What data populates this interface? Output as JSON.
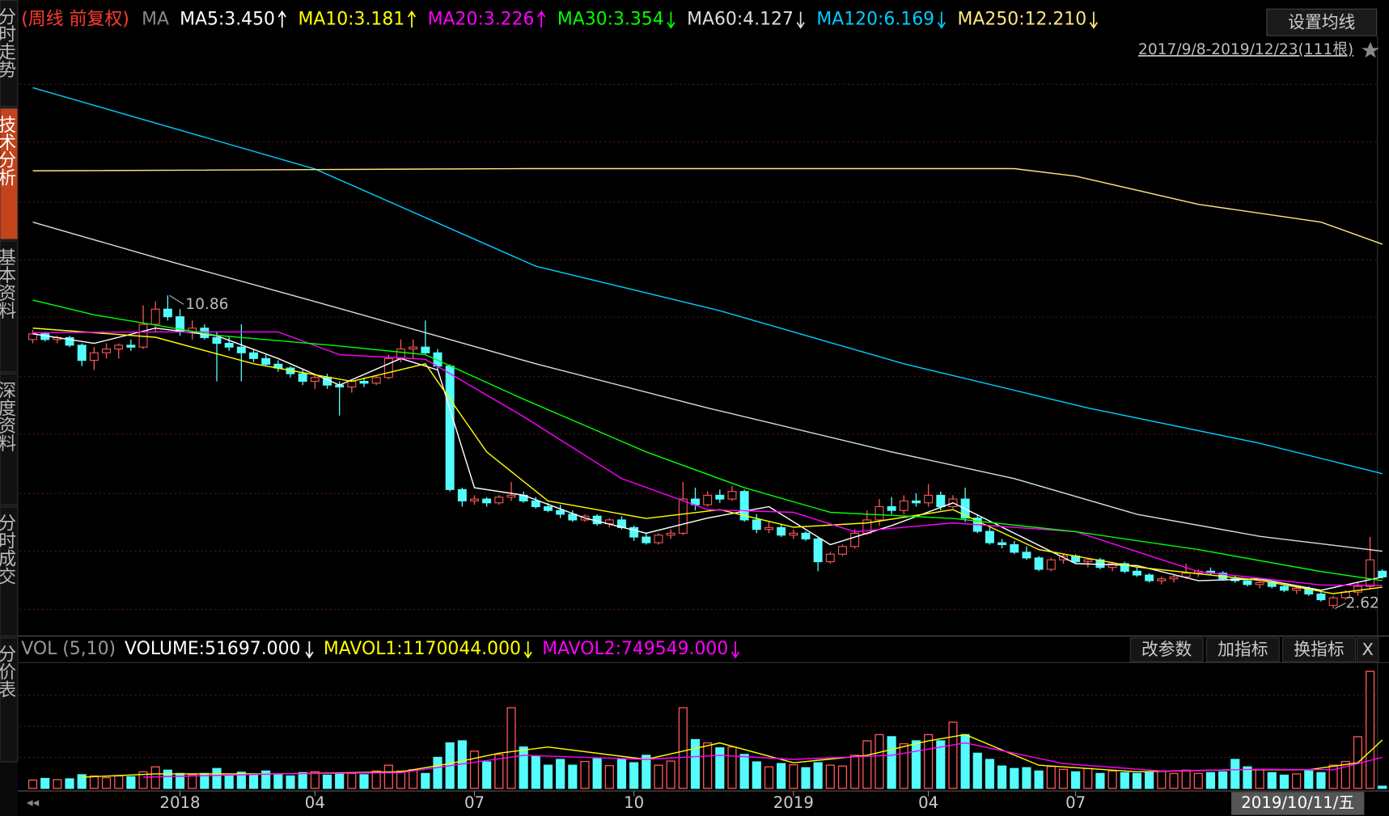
{
  "sidebar": {
    "tabs": [
      "分时走势",
      "技术分析",
      "基本资料",
      "深度资料",
      "分时成交",
      "分价表"
    ],
    "active": 1
  },
  "toolbar": {
    "settings_button": "设置均线",
    "range": "2017/9/8-2019/12/23(111根)"
  },
  "indicator_buttons": [
    "改参数",
    "加指标",
    "换指标",
    "X"
  ],
  "chart_data": [
    {
      "type": "candlestick",
      "title": "(周线 前复权)",
      "ma_label": "MA",
      "up_color": "#ff5757",
      "down_color": "#54fcfc",
      "ylim": [
        2.5,
        18.4
      ],
      "high_label": "10.86",
      "low_label": "2.62",
      "categories": [
        null,
        null,
        null,
        null,
        null,
        null,
        null,
        null,
        null,
        null,
        null,
        null,
        "2018",
        null,
        null,
        null,
        null,
        null,
        null,
        null,
        null,
        null,
        null,
        "04",
        null,
        null,
        null,
        null,
        null,
        null,
        null,
        null,
        null,
        null,
        null,
        null,
        "07",
        null,
        null,
        null,
        null,
        null,
        null,
        null,
        null,
        null,
        null,
        null,
        null,
        "10",
        null,
        null,
        null,
        null,
        null,
        null,
        null,
        null,
        null,
        null,
        null,
        null,
        "2019",
        null,
        null,
        null,
        null,
        null,
        null,
        null,
        null,
        null,
        null,
        "04",
        null,
        null,
        null,
        null,
        null,
        null,
        null,
        null,
        null,
        null,
        null,
        "07",
        null,
        null,
        null,
        null,
        null,
        null,
        null,
        null,
        null,
        null,
        null,
        null,
        null,
        null,
        null,
        null,
        null,
        null,
        null,
        null,
        null,
        null,
        null,
        null,
        null
      ],
      "cursor_label": "2019/10/11/五",
      "ohlc": [
        [
          9.7,
          9.95,
          9.6,
          9.85
        ],
        [
          9.85,
          9.9,
          9.65,
          9.7
        ],
        [
          9.7,
          9.8,
          9.6,
          9.75
        ],
        [
          9.75,
          9.8,
          9.5,
          9.55
        ],
        [
          9.55,
          9.6,
          9.0,
          9.15
        ],
        [
          9.15,
          9.5,
          8.9,
          9.35
        ],
        [
          9.35,
          9.6,
          9.2,
          9.45
        ],
        [
          9.45,
          9.6,
          9.2,
          9.55
        ],
        [
          9.55,
          9.7,
          9.4,
          9.5
        ],
        [
          9.5,
          10.6,
          9.45,
          10.1
        ],
        [
          10.1,
          10.7,
          9.9,
          10.5
        ],
        [
          10.5,
          10.86,
          10.2,
          10.3
        ],
        [
          10.3,
          10.5,
          9.8,
          9.9
        ],
        [
          9.9,
          10.2,
          9.7,
          10.0
        ],
        [
          10.0,
          10.1,
          9.7,
          9.75
        ],
        [
          9.75,
          9.9,
          8.6,
          9.6
        ],
        [
          9.6,
          9.8,
          9.4,
          9.5
        ],
        [
          9.5,
          10.1,
          8.6,
          9.35
        ],
        [
          9.35,
          9.45,
          9.1,
          9.2
        ],
        [
          9.2,
          9.3,
          9.0,
          9.05
        ],
        [
          9.05,
          9.15,
          8.85,
          8.95
        ],
        [
          8.95,
          9.0,
          8.7,
          8.8
        ],
        [
          8.8,
          8.9,
          8.5,
          8.6
        ],
        [
          8.6,
          8.8,
          8.4,
          8.7
        ],
        [
          8.7,
          8.8,
          8.4,
          8.5
        ],
        [
          8.5,
          8.6,
          7.7,
          8.45
        ],
        [
          8.45,
          8.65,
          8.3,
          8.6
        ],
        [
          8.6,
          8.7,
          8.45,
          8.55
        ],
        [
          8.55,
          8.75,
          8.5,
          8.7
        ],
        [
          8.7,
          9.3,
          8.65,
          9.2
        ],
        [
          9.2,
          9.7,
          9.1,
          9.45
        ],
        [
          9.45,
          9.7,
          9.2,
          9.5
        ],
        [
          9.5,
          10.2,
          9.3,
          9.35
        ],
        [
          9.35,
          9.45,
          8.9,
          9.0
        ],
        [
          9.0,
          9.05,
          5.7,
          5.75
        ],
        [
          5.75,
          5.8,
          5.3,
          5.45
        ],
        [
          5.45,
          5.6,
          5.35,
          5.5
        ],
        [
          5.5,
          5.55,
          5.3,
          5.4
        ],
        [
          5.4,
          5.6,
          5.35,
          5.55
        ],
        [
          5.55,
          5.95,
          5.45,
          5.6
        ],
        [
          5.6,
          5.7,
          5.4,
          5.45
        ],
        [
          5.45,
          5.55,
          5.25,
          5.3
        ],
        [
          5.3,
          5.4,
          5.15,
          5.2
        ],
        [
          5.2,
          5.35,
          5.0,
          5.1
        ],
        [
          5.1,
          5.2,
          4.9,
          4.95
        ],
        [
          4.95,
          5.1,
          4.9,
          5.05
        ],
        [
          5.05,
          5.1,
          4.8,
          4.85
        ],
        [
          4.85,
          5.0,
          4.75,
          4.95
        ],
        [
          4.95,
          5.05,
          4.7,
          4.75
        ],
        [
          4.75,
          4.8,
          4.4,
          4.5
        ],
        [
          4.5,
          4.6,
          4.3,
          4.35
        ],
        [
          4.35,
          4.6,
          4.3,
          4.55
        ],
        [
          4.55,
          4.7,
          4.45,
          4.6
        ],
        [
          4.6,
          5.95,
          4.55,
          5.5
        ],
        [
          5.5,
          5.8,
          5.2,
          5.35
        ],
        [
          5.35,
          5.7,
          5.3,
          5.6
        ],
        [
          5.6,
          5.75,
          5.4,
          5.5
        ],
        [
          5.5,
          5.85,
          5.45,
          5.7
        ],
        [
          5.7,
          5.75,
          4.9,
          4.95
        ],
        [
          4.95,
          5.1,
          4.6,
          4.7
        ],
        [
          4.7,
          4.9,
          4.6,
          4.75
        ],
        [
          4.75,
          4.85,
          4.5,
          4.55
        ],
        [
          4.55,
          4.7,
          4.45,
          4.6
        ],
        [
          4.6,
          4.65,
          4.4,
          4.45
        ],
        [
          4.45,
          4.5,
          3.6,
          3.85
        ],
        [
          3.85,
          4.1,
          3.8,
          4.05
        ],
        [
          4.05,
          4.3,
          4.0,
          4.25
        ],
        [
          4.25,
          4.7,
          4.2,
          4.6
        ],
        [
          4.6,
          5.2,
          4.55,
          4.95
        ],
        [
          4.95,
          5.5,
          4.8,
          5.3
        ],
        [
          5.3,
          5.55,
          5.1,
          5.2
        ],
        [
          5.2,
          5.6,
          5.1,
          5.45
        ],
        [
          5.45,
          5.65,
          5.3,
          5.4
        ],
        [
          5.4,
          5.9,
          5.3,
          5.6
        ],
        [
          5.6,
          5.7,
          5.2,
          5.3
        ],
        [
          5.3,
          5.6,
          5.25,
          5.5
        ],
        [
          5.5,
          5.8,
          4.9,
          5.0
        ],
        [
          5.0,
          5.1,
          4.6,
          4.65
        ],
        [
          4.65,
          4.75,
          4.3,
          4.35
        ],
        [
          4.35,
          4.45,
          4.2,
          4.3
        ],
        [
          4.3,
          4.4,
          4.05,
          4.1
        ],
        [
          4.1,
          4.25,
          3.9,
          3.95
        ],
        [
          3.95,
          4.0,
          3.6,
          3.65
        ],
        [
          3.65,
          3.95,
          3.6,
          3.9
        ],
        [
          3.9,
          4.05,
          3.8,
          4.0
        ],
        [
          4.0,
          4.05,
          3.8,
          3.85
        ],
        [
          3.85,
          3.95,
          3.7,
          3.9
        ],
        [
          3.9,
          3.95,
          3.65,
          3.7
        ],
        [
          3.7,
          3.85,
          3.6,
          3.8
        ],
        [
          3.8,
          3.85,
          3.55,
          3.6
        ],
        [
          3.6,
          3.7,
          3.45,
          3.5
        ],
        [
          3.5,
          3.55,
          3.3,
          3.35
        ],
        [
          3.35,
          3.45,
          3.25,
          3.4
        ],
        [
          3.4,
          3.5,
          3.3,
          3.45
        ],
        [
          3.45,
          3.8,
          3.4,
          3.55
        ],
        [
          3.55,
          3.65,
          3.45,
          3.6
        ],
        [
          3.6,
          3.7,
          3.5,
          3.55
        ],
        [
          3.55,
          3.6,
          3.35,
          3.4
        ],
        [
          3.4,
          3.5,
          3.3,
          3.35
        ],
        [
          3.35,
          3.4,
          3.2,
          3.25
        ],
        [
          3.25,
          3.35,
          3.15,
          3.3
        ],
        [
          3.3,
          3.35,
          3.15,
          3.2
        ],
        [
          3.2,
          3.25,
          3.05,
          3.1
        ],
        [
          3.1,
          3.2,
          3.0,
          3.15
        ],
        [
          3.15,
          3.2,
          2.95,
          3.0
        ],
        [
          3.0,
          3.05,
          2.8,
          2.85
        ],
        [
          2.7,
          2.95,
          2.62,
          2.9
        ],
        [
          2.9,
          3.1,
          2.85,
          3.05
        ],
        [
          3.05,
          3.3,
          2.95,
          3.2
        ],
        [
          3.2,
          4.5,
          3.15,
          3.9
        ],
        [
          3.6,
          3.65,
          3.4,
          3.45
        ]
      ],
      "series": [
        {
          "label": "MA5:3.450",
          "trend": "up",
          "color": "#ffffff",
          "x": [
            0,
            5,
            10,
            15,
            20,
            25,
            30,
            33,
            36,
            40,
            45,
            50,
            55,
            60,
            65,
            70,
            75,
            80,
            85,
            90,
            95,
            100,
            105,
            110
          ],
          "values": [
            9.85,
            9.6,
            10.0,
            9.8,
            9.2,
            8.5,
            9.2,
            8.9,
            5.8,
            5.6,
            5.0,
            4.6,
            5.0,
            5.3,
            4.3,
            4.8,
            5.4,
            4.6,
            3.8,
            3.75,
            3.35,
            3.4,
            3.1,
            3.45
          ]
        },
        {
          "label": "MA10:3.181",
          "trend": "up",
          "color": "#ffff00",
          "x": [
            0,
            10,
            18,
            26,
            32,
            37,
            42,
            50,
            56,
            62,
            68,
            75,
            82,
            90,
            100,
            106,
            110
          ],
          "values": [
            10.0,
            9.76,
            9.06,
            8.6,
            9.06,
            6.74,
            5.45,
            4.99,
            5.22,
            4.76,
            4.87,
            5.22,
            4.17,
            3.71,
            3.36,
            3.01,
            3.181
          ]
        },
        {
          "label": "MA20:3.226",
          "trend": "up",
          "color": "#ff00ff",
          "x": [
            0,
            10,
            20,
            25,
            32,
            40,
            48,
            55,
            62,
            67,
            75,
            85,
            95,
            105,
            110
          ],
          "values": [
            9.88,
            9.9,
            9.9,
            9.3,
            9.18,
            7.67,
            6.04,
            5.22,
            5.15,
            4.64,
            4.87,
            4.64,
            3.59,
            3.24,
            3.226
          ]
        },
        {
          "label": "MA30:3.354",
          "trend": "down",
          "color": "#00ff00",
          "x": [
            0,
            5,
            15,
            25,
            32,
            40,
            50,
            58,
            65,
            75,
            85,
            95,
            105,
            110
          ],
          "values": [
            10.74,
            10.35,
            9.81,
            9.53,
            9.3,
            8.13,
            6.74,
            5.8,
            5.15,
            4.99,
            4.64,
            4.17,
            3.59,
            3.354
          ]
        },
        {
          "label": "MA60:4.127",
          "trend": "down",
          "color": "#dddddd",
          "x": [
            0,
            10,
            23,
            32,
            41,
            55,
            70,
            80,
            90,
            100,
            110
          ],
          "values": [
            12.79,
            11.86,
            10.7,
            9.88,
            9.06,
            7.9,
            6.74,
            6.04,
            5.1,
            4.52,
            4.127
          ]
        },
        {
          "label": "MA120:6.169",
          "trend": "down",
          "color": "#00ccff",
          "x": [
            0,
            23,
            41,
            56,
            71,
            86,
            100,
            110
          ],
          "values": [
            16.33,
            14.19,
            11.63,
            10.46,
            9.06,
            7.9,
            6.97,
            6.169
          ]
        },
        {
          "label": "MA250:12.210",
          "trend": "down",
          "color": "#ffe680",
          "x": [
            0,
            40,
            80,
            85,
            95,
            105,
            110
          ],
          "values": [
            14.14,
            14.2,
            14.2,
            14.0,
            13.26,
            12.79,
            12.21
          ]
        }
      ]
    },
    {
      "type": "bar",
      "title": "VOL (5,10)",
      "ylim": [
        0,
        3000000
      ],
      "values": [
        200000,
        240000,
        210000,
        230000,
        330000,
        300000,
        260000,
        300000,
        280000,
        400000,
        520000,
        440000,
        360000,
        330000,
        360000,
        480000,
        300000,
        390000,
        340000,
        420000,
        330000,
        300000,
        380000,
        400000,
        320000,
        370000,
        360000,
        330000,
        420000,
        560000,
        420000,
        450000,
        360000,
        750000,
        1100000,
        1150000,
        900000,
        640000,
        820000,
        1950000,
        1000000,
        780000,
        560000,
        700000,
        560000,
        650000,
        720000,
        550000,
        700000,
        620000,
        800000,
        560000,
        660000,
        1950000,
        1180000,
        1100000,
        980000,
        1000000,
        820000,
        640000,
        520000,
        600000,
        570000,
        500000,
        620000,
        560000,
        540000,
        800000,
        1150000,
        1300000,
        1250000,
        1080000,
        1150000,
        1300000,
        1150000,
        1600000,
        1300000,
        850000,
        700000,
        540000,
        480000,
        500000,
        420000,
        530000,
        460000,
        400000,
        480000,
        360000,
        420000,
        380000,
        360000,
        380000,
        420000,
        360000,
        440000,
        360000,
        380000,
        400000,
        700000,
        520000,
        460000,
        380000,
        320000,
        350000,
        420000,
        380000,
        560000,
        650000,
        1250000,
        2830000,
        51697
      ],
      "volume_label": "VOLUME:51697.000",
      "volume_trend": "down",
      "series": [
        {
          "label": "MAVOL1:1170044.000",
          "trend": "down",
          "color": "#ffff00",
          "x": [
            4,
            10,
            20,
            30,
            34,
            38,
            42,
            50,
            53,
            56,
            62,
            68,
            73,
            76,
            82,
            90,
            98,
            104,
            108,
            110
          ],
          "values": [
            270000,
            350000,
            350000,
            400000,
            600000,
            850000,
            1000000,
            700000,
            900000,
            1100000,
            620000,
            800000,
            1150000,
            1300000,
            560000,
            400000,
            450000,
            450000,
            620000,
            1170044
          ]
        },
        {
          "label": "MAVOL2:749549.000",
          "trend": "down",
          "color": "#ff00ff",
          "x": [
            9,
            20,
            30,
            40,
            50,
            56,
            62,
            70,
            76,
            84,
            92,
            100,
            106,
            110
          ],
          "values": [
            270000,
            350000,
            380000,
            800000,
            700000,
            800000,
            700000,
            800000,
            1100000,
            600000,
            420000,
            460000,
            450000,
            749549
          ]
        }
      ]
    }
  ]
}
